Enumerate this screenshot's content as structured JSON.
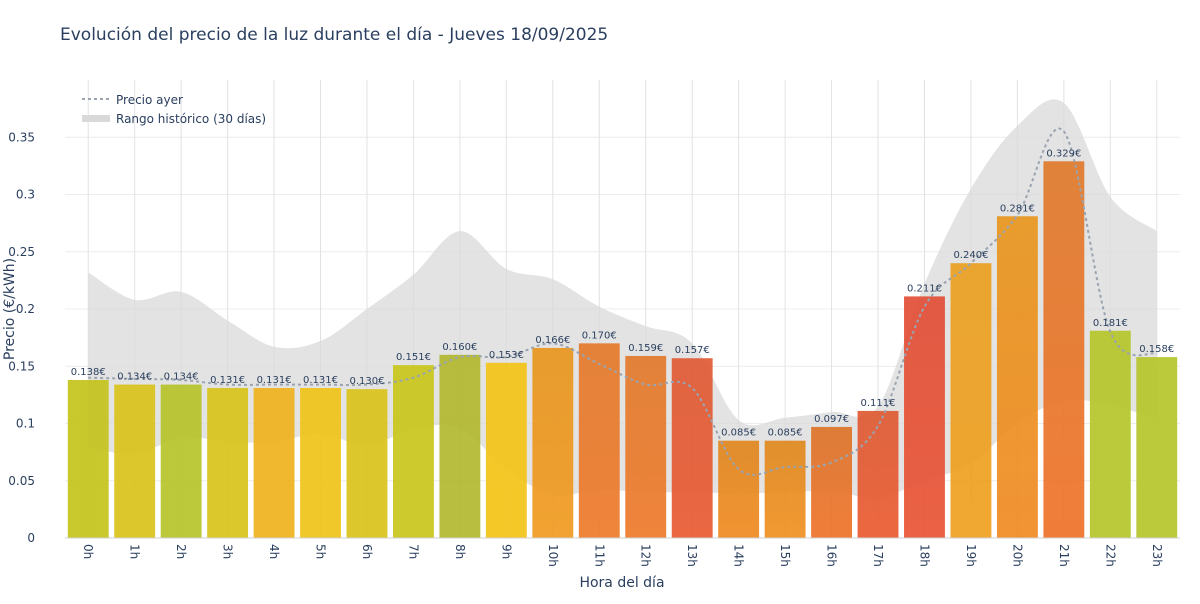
{
  "chart_data": {
    "type": "bar",
    "title": "Evolución del precio de la luz durante el día - Jueves 18/09/2025",
    "xlabel": "Hora del día",
    "ylabel": "Precio (€/kWh)",
    "ylim": [
      0,
      0.4
    ],
    "yticks": [
      0,
      0.05,
      0.1,
      0.15,
      0.2,
      0.25,
      0.3,
      0.35
    ],
    "ytick_labels": [
      "0",
      "0.05",
      "0.1",
      "0.15",
      "0.2",
      "0.25",
      "0.3",
      "0.35"
    ],
    "grid": true,
    "legend_position": "top-left",
    "categories": [
      "0h",
      "1h",
      "2h",
      "3h",
      "4h",
      "5h",
      "6h",
      "7h",
      "8h",
      "9h",
      "10h",
      "11h",
      "12h",
      "13h",
      "14h",
      "15h",
      "16h",
      "17h",
      "18h",
      "19h",
      "20h",
      "21h",
      "22h",
      "23h"
    ],
    "values": [
      0.138,
      0.134,
      0.134,
      0.131,
      0.131,
      0.131,
      0.13,
      0.151,
      0.16,
      0.153,
      0.166,
      0.17,
      0.159,
      0.157,
      0.085,
      0.085,
      0.097,
      0.111,
      0.211,
      0.24,
      0.281,
      0.329,
      0.181,
      0.158
    ],
    "value_labels": [
      "0.138€",
      "0.134€",
      "0.134€",
      "0.131€",
      "0.131€",
      "0.131€",
      "0.130€",
      "0.151€",
      "0.160€",
      "0.153€",
      "0.166€",
      "0.170€",
      "0.159€",
      "0.157€",
      "0.085€",
      "0.085€",
      "0.097€",
      "0.111€",
      "0.211€",
      "0.240€",
      "0.281€",
      "0.329€",
      "0.181€",
      "0.158€"
    ],
    "bar_colors": [
      "#c4c41c",
      "#d9c31a",
      "#b6c42a",
      "#d7c41a",
      "#eeb21c",
      "#f0c318",
      "#d9c31a",
      "#c9c61c",
      "#b2b830",
      "#f2c416",
      "#f09a20",
      "#ee7a2a",
      "#ee7a2a",
      "#e85a32",
      "#f08a20",
      "#f09020",
      "#ee7228",
      "#ea5a30",
      "#e85435",
      "#f0a020",
      "#f08a22",
      "#ee7228",
      "#b4c62a",
      "#b4c62a"
    ],
    "bar_colors_top": [
      "#c4c41c",
      "#d9c31a",
      "#b6c42a",
      "#d7c41a",
      "#eeb21c",
      "#f0c318",
      "#d9c31a",
      "#c9c61c",
      "#b2b830",
      "#f2c416",
      "#e8961e",
      "#e47a2c",
      "#e27a2c",
      "#e05a34",
      "#e0861e",
      "#e0881e",
      "#dc742a",
      "#de5a32",
      "#e24e36",
      "#eaa022",
      "#e8961e",
      "#e07a2c",
      "#b4c62a",
      "#b4c62a"
    ],
    "series": [
      {
        "name": "Precio ayer",
        "type": "line",
        "style": "dotted",
        "color": "#9aa4b0",
        "values": [
          0.14,
          0.139,
          0.138,
          0.134,
          0.134,
          0.134,
          0.134,
          0.14,
          0.158,
          0.158,
          0.17,
          0.152,
          0.134,
          0.131,
          0.06,
          0.062,
          0.066,
          0.098,
          0.202,
          0.24,
          0.282,
          0.355,
          0.18,
          0.161
        ]
      },
      {
        "name": "Rango histórico (30 días)",
        "type": "band",
        "color": "#d9d9d9",
        "upper": [
          0.232,
          0.208,
          0.215,
          0.19,
          0.167,
          0.172,
          0.2,
          0.23,
          0.268,
          0.235,
          0.226,
          0.202,
          0.185,
          0.17,
          0.103,
          0.105,
          0.11,
          0.115,
          0.222,
          0.305,
          0.36,
          0.38,
          0.298,
          0.268
        ],
        "lower": [
          0.08,
          0.073,
          0.088,
          0.084,
          0.084,
          0.091,
          0.081,
          0.095,
          0.096,
          0.06,
          0.038,
          0.042,
          0.04,
          0.04,
          0.039,
          0.04,
          0.041,
          0.035,
          0.05,
          0.065,
          0.1,
          0.12,
          0.116,
          0.104
        ]
      }
    ]
  }
}
